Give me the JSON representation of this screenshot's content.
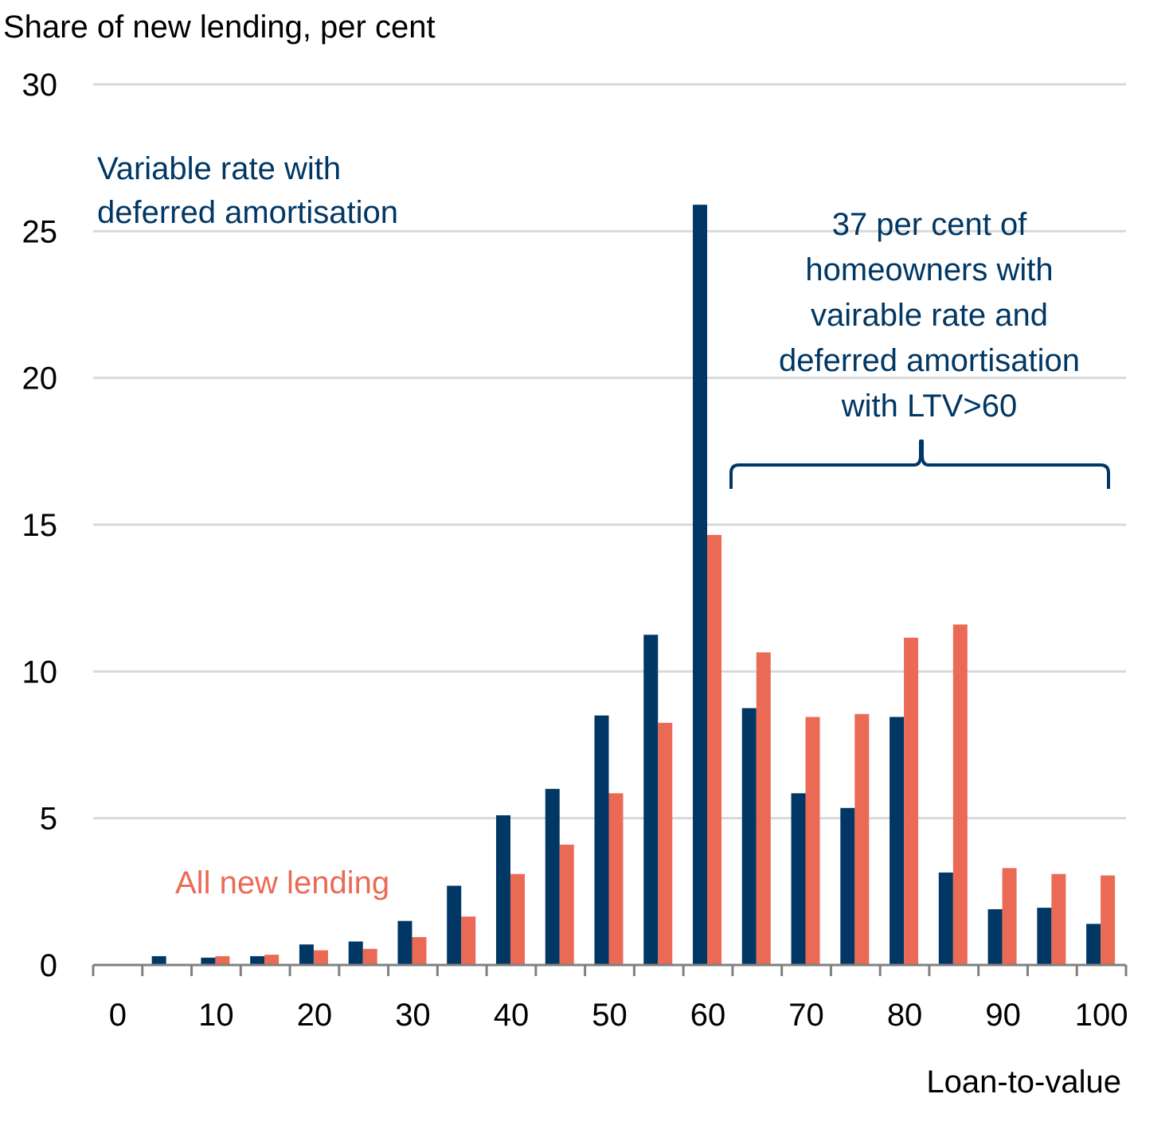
{
  "chart_data": {
    "type": "bar",
    "title": "",
    "ylabel": "Share of new lending, per cent",
    "xlabel": "Loan-to-value",
    "ylim": [
      0,
      30
    ],
    "yticks": [
      0,
      5,
      10,
      15,
      20,
      25,
      30
    ],
    "grid": true,
    "categories": [
      0,
      5,
      10,
      15,
      20,
      25,
      30,
      35,
      40,
      45,
      50,
      55,
      60,
      65,
      70,
      75,
      80,
      85,
      90,
      95,
      100
    ],
    "xtick_labels": [
      "0",
      "10",
      "20",
      "30",
      "40",
      "50",
      "60",
      "70",
      "80",
      "90",
      "100"
    ],
    "series": [
      {
        "name": "Variable rate with deferred amortisation",
        "color": "#003764",
        "values": [
          0,
          0.3,
          0.25,
          0.3,
          0.7,
          0.8,
          1.5,
          2.7,
          5.1,
          6.0,
          8.5,
          11.25,
          25.9,
          8.75,
          5.85,
          5.35,
          8.45,
          3.15,
          1.9,
          1.95,
          1.4
        ]
      },
      {
        "name": "All new lending",
        "color": "#EA6A56",
        "values": [
          0,
          0,
          0.3,
          0.35,
          0.5,
          0.55,
          0.95,
          1.65,
          3.1,
          4.1,
          5.85,
          8.25,
          14.65,
          10.65,
          8.45,
          8.55,
          11.15,
          11.6,
          3.3,
          3.1,
          3.05
        ]
      }
    ],
    "annotations": {
      "series1_label": [
        "Variable rate with",
        "deferred amortisation"
      ],
      "series2_label": "All new lending",
      "brace_label": [
        "37 per cent of",
        "homeowners with",
        "vairable rate and",
        "deferred amortisation",
        "with LTV>60"
      ],
      "brace_range": [
        60,
        100
      ]
    },
    "legend": "inline annotations"
  }
}
